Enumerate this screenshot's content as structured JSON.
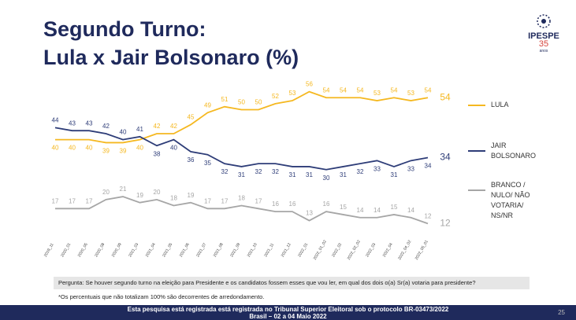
{
  "chart_data": {
    "type": "line",
    "title": [
      "Segundo Turno:",
      "Lula x Jair Bolsonaro (%)"
    ],
    "categories": [
      "2019_11",
      "2020_01",
      "2020_05",
      "2020_08",
      "2020_09",
      "2021_03",
      "2021_04",
      "2021_05",
      "2021_06",
      "2021_07",
      "2021_08",
      "2021_09",
      "2021_10",
      "2021_11",
      "2021_12",
      "2022_01",
      "2022_01_02",
      "2022_02",
      "2022_02_02",
      "2022_03",
      "2022_04",
      "2022_04_02",
      "2022_05_01"
    ],
    "series": [
      {
        "name": "LULA",
        "color": "#f5b820",
        "values": [
          40,
          40,
          40,
          39,
          39,
          40,
          42,
          42,
          45,
          49,
          51,
          50,
          50,
          52,
          53,
          56,
          54,
          54,
          54,
          53,
          54,
          53,
          54
        ]
      },
      {
        "name": "JAIR BOLSONARO",
        "color": "#2e3d78",
        "values": [
          44,
          43,
          43,
          42,
          40,
          41,
          38,
          40,
          36,
          35,
          32,
          31,
          32,
          32,
          31,
          31,
          30,
          31,
          32,
          33,
          31,
          33,
          34
        ]
      },
      {
        "name": "BRANCO / NULO/ NÃO VOTARIA/ NS/NR",
        "color": "#a6a6a6",
        "values": [
          17,
          17,
          17,
          20,
          21,
          19,
          20,
          18,
          19,
          17,
          17,
          18,
          17,
          16,
          16,
          13,
          16,
          15,
          14,
          14,
          15,
          14,
          12
        ]
      }
    ],
    "ylim": [
      10,
      58
    ],
    "grid": false
  },
  "logo": {
    "name": "IPESPE",
    "number": "35",
    "sub": "anos"
  },
  "question": "Pergunta:  Se houver segundo turno na eleição para Presidente e os candidatos fossem esses que vou ler, em qual dos dois o(a) Sr(a) votaria para presidente?",
  "footnote": "*Os percentuais que não totalizam 100% são decorrentes de arredondamento.",
  "footer": [
    "Esta pesquisa está registrada está registrada no Tribunal Superior Eleitoral sob o protocolo BR-03473/2022",
    "Brasil – 02 a 04 Maio 2022"
  ],
  "page_number": "25"
}
